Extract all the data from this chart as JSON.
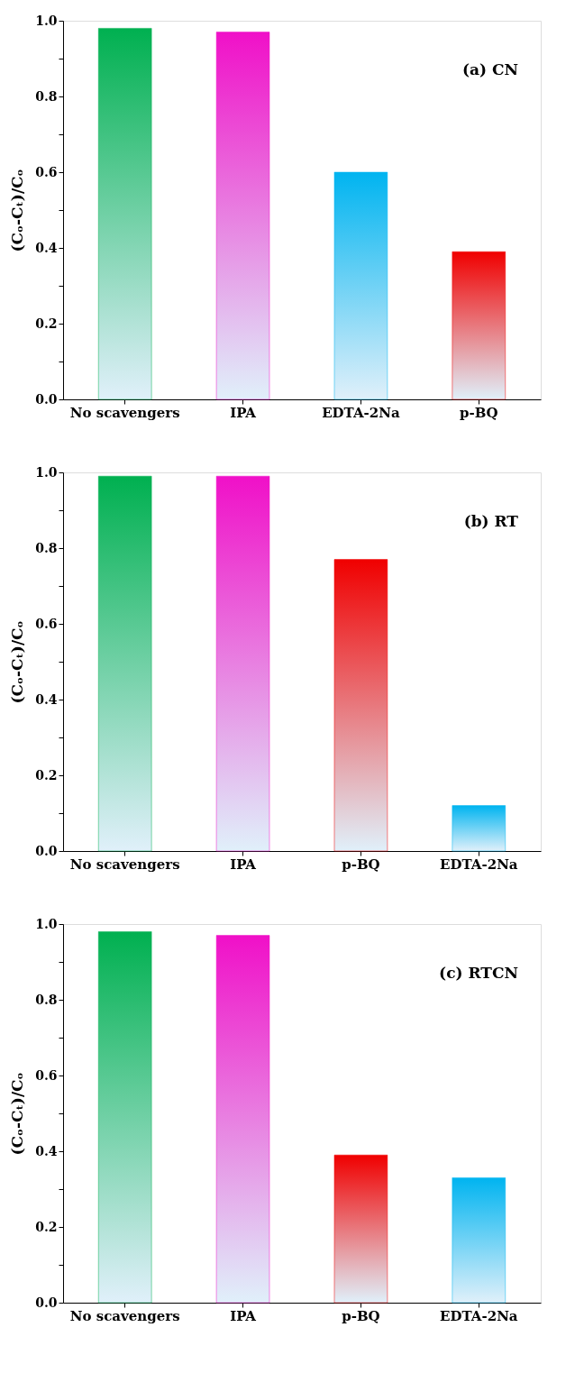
{
  "chart_data": [
    {
      "type": "bar",
      "categories": [
        "No scavengers",
        "IPA",
        "EDTA-2Na",
        "p-BQ"
      ],
      "values": [
        0.98,
        0.97,
        0.6,
        0.39
      ],
      "colors": [
        "#00b050",
        "#f010c8",
        "#00b4f0",
        "#f00000"
      ],
      "ylabel": "(Cₒ-Cₜ)/Cₒ",
      "ylim": [
        0,
        1
      ],
      "yticks": [
        {
          "value": 0,
          "label": "0.0"
        },
        {
          "value": 0.1,
          "label": null
        },
        0.2,
        {
          "value": 0.3,
          "label": null
        },
        0.4,
        {
          "value": 0.5,
          "label": null
        },
        0.6,
        {
          "value": 0.7,
          "label": null
        },
        0.8,
        {
          "value": 0.9,
          "label": null
        },
        {
          "value": 1,
          "label": "1.0"
        }
      ],
      "annotations": [
        "(a) CN"
      ]
    },
    {
      "type": "bar",
      "categories": [
        "No scavengers",
        "IPA",
        "p-BQ",
        "EDTA-2Na"
      ],
      "values": [
        0.99,
        0.99,
        0.77,
        0.12
      ],
      "colors": [
        "#00b050",
        "#f010c8",
        "#f00000",
        "#00b4f0"
      ],
      "ylabel": "(Cₒ-Cₜ)/Cₒ",
      "ylim": [
        0,
        1
      ],
      "yticks": [
        {
          "value": 0,
          "label": "0.0"
        },
        {
          "value": 0.1,
          "label": null
        },
        0.2,
        {
          "value": 0.3,
          "label": null
        },
        0.4,
        {
          "value": 0.5,
          "label": null
        },
        0.6,
        {
          "value": 0.7,
          "label": null
        },
        0.8,
        {
          "value": 0.9,
          "label": null
        },
        {
          "value": 1,
          "label": "1.0"
        }
      ],
      "annotations": [
        "(b) RT"
      ]
    },
    {
      "type": "bar",
      "categories": [
        "No scavengers",
        "IPA",
        "p-BQ",
        "EDTA-2Na"
      ],
      "values": [
        0.98,
        0.97,
        0.39,
        0.33
      ],
      "colors": [
        "#00b050",
        "#f010c8",
        "#f00000",
        "#00b4f0"
      ],
      "ylabel": "(Cₒ-Cₜ)/Cₒ",
      "ylim": [
        0,
        1
      ],
      "yticks": [
        {
          "value": 0,
          "label": "0.0"
        },
        {
          "value": 0.1,
          "label": null
        },
        0.2,
        {
          "value": 0.3,
          "label": null
        },
        0.4,
        {
          "value": 0.5,
          "label": null
        },
        0.6,
        {
          "value": 0.7,
          "label": null
        },
        0.8,
        {
          "value": 0.9,
          "label": null
        },
        {
          "value": 1,
          "label": "1.0"
        }
      ],
      "annotations": [
        "(c) RTCN"
      ]
    }
  ]
}
